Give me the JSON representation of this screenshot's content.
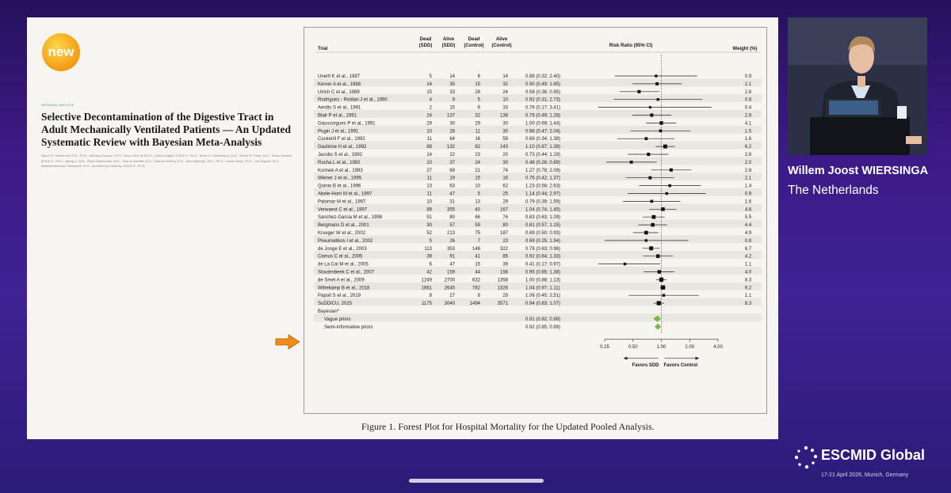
{
  "slide": {
    "badge": "new",
    "article": {
      "label": "ORIGINAL ARTICLE",
      "title": "Selective Decontamination of the Digestive Tract in Adult Mechanically Ventilated Patients — An Updated Systematic Review with Bayesian Meta-Analysis",
      "authors": "Naomi E. Hammond, R.N., Ph.D., Anthony Devaux, Ph.D., Ruun Vleit, M.B.B.S., Derick Adigbli, M.B.B.S., Ph.D., Brian H. Cuthbertson, M.D., Simon R. Finfer, M.D., Tessa Garside, M.B.B.S., Ph.D., Qiang Li, M.B., Siaen Mahendran, M.D., Sharon Micallef, B.N., Srinivas Murthy, M.D., John Myburgh, M.D., Ph.D., Louise Rose, Ph.D., Ian Seppelt, M.D., Balasubramanian Venkatesh, M.D., and Anthony Delaney, M.B.B.S., Ph.D."
    },
    "caption": "Figure 1.  Forest Plot for Hospital Mortality for the Updated Pooled Analysis.",
    "arrow_icon": "orange-arrow-right-icon"
  },
  "speaker": {
    "name": "Willem Joost WIERSINGA",
    "country": "The Netherlands"
  },
  "event": {
    "logo_name": "ESCMID Global",
    "dates": "17-21 April 2026, Munich, Germany"
  },
  "forest_plot": {
    "headers": {
      "trial": "Trial",
      "dead_sdd": [
        "Dead",
        "(SDD)"
      ],
      "alive_sdd": [
        "Alive",
        "(SDD)"
      ],
      "dead_control": [
        "Dead",
        "(Control)"
      ],
      "alive_control": [
        "Alive",
        "(Control)"
      ],
      "risk_ratio": "Risk Ratio (95% CI)",
      "weight": "Weight (%)"
    },
    "bayesian_label": "Bayesian*",
    "favors_sdd": "Favors SDD",
    "favors_control": "Favors Control",
    "colors": {
      "square": "#111111",
      "diamond": "#7ab648",
      "stripe": "#e7e6e0",
      "arrow": "#f08c1a"
    }
  },
  "chart_data": {
    "type": "forest",
    "x_scale": "log",
    "xlim": [
      0.25,
      4.0
    ],
    "x_ticks": [
      0.25,
      0.5,
      1.0,
      2.0,
      4.0
    ],
    "x_tick_labels": [
      "0.25",
      "0.50",
      "1.00",
      "2.00",
      "4.00"
    ],
    "reference_line": 1.0,
    "trials": [
      {
        "trial": "Unertl K et al., 1987",
        "dead_sdd": "5",
        "alive_sdd": "14",
        "dead_control": "6",
        "alive_control": "14",
        "rr_text": "0.88 (0.32; 2.40)",
        "rr": 0.88,
        "lo": 0.32,
        "hi": 2.4,
        "weight": "0.9"
      },
      {
        "trial": "Kerver A et al., 1988",
        "dead_sdd": "14",
        "alive_sdd": "35",
        "dead_control": "15",
        "alive_control": "32",
        "rr_text": "0.90 (0.49; 1.65)",
        "rr": 0.9,
        "lo": 0.49,
        "hi": 1.65,
        "weight": "2.1"
      },
      {
        "trial": "Ulrich C et al., 1989",
        "dead_sdd": "15",
        "alive_sdd": "33",
        "dead_control": "28",
        "alive_control": "24",
        "rr_text": "0.58 (0.36; 0.95)",
        "rr": 0.58,
        "lo": 0.36,
        "hi": 0.95,
        "weight": "2.8"
      },
      {
        "trial": "Rodriguez - Roldan J et al., 1990",
        "dead_sdd": "4",
        "alive_sdd": "9",
        "dead_control": "5",
        "alive_control": "10",
        "rr_text": "0.92 (0.31; 2.73)",
        "rr": 0.92,
        "lo": 0.31,
        "hi": 2.73,
        "weight": "0.8"
      },
      {
        "trial": "Aerdts S et al., 1991",
        "dead_sdd": "2",
        "alive_sdd": "15",
        "dead_control": "6",
        "alive_control": "33",
        "rr_text": "0.76 (0.17; 3.41)",
        "rr": 0.76,
        "lo": 0.17,
        "hi": 3.41,
        "weight": "0.4"
      },
      {
        "trial": "Blair P et al., 1991",
        "dead_sdd": "24",
        "alive_sdd": "137",
        "dead_control": "32",
        "alive_control": "138",
        "rr_text": "0.79 (0.49; 1.28)",
        "rr": 0.79,
        "lo": 0.49,
        "hi": 1.28,
        "weight": "2.9"
      },
      {
        "trial": "Gaussorgues P et al., 1991",
        "dead_sdd": "29",
        "alive_sdd": "30",
        "dead_control": "29",
        "alive_control": "30",
        "rr_text": "1.00 (0.69; 1.44)",
        "rr": 1.0,
        "lo": 0.69,
        "hi": 1.44,
        "weight": "4.1"
      },
      {
        "trial": "Pugin J et al., 1991",
        "dead_sdd": "10",
        "alive_sdd": "28",
        "dead_control": "11",
        "alive_control": "30",
        "rr_text": "0.98 (0.47; 2.04)",
        "rr": 0.98,
        "lo": 0.47,
        "hi": 2.04,
        "weight": "1.5"
      },
      {
        "trial": "Cockerill F et al., 1992",
        "dead_sdd": "11",
        "alive_sdd": "64",
        "dead_control": "16",
        "alive_control": "59",
        "rr_text": "0.69 (0.34; 1.38)",
        "rr": 0.69,
        "lo": 0.34,
        "hi": 1.38,
        "weight": "1.6"
      },
      {
        "trial": "Gastinne H et al., 1992",
        "dead_sdd": "88",
        "alive_sdd": "132",
        "dead_control": "82",
        "alive_control": "143",
        "rr_text": "1.10 (0.87; 1.39)",
        "rr": 1.1,
        "lo": 0.87,
        "hi": 1.39,
        "weight": "6.2"
      },
      {
        "trial": "Jacobs S et al., 1992",
        "dead_sdd": "14",
        "alive_sdd": "22",
        "dead_control": "23",
        "alive_control": "20",
        "rr_text": "0.73 (0.44; 1.19)",
        "rr": 0.73,
        "lo": 0.44,
        "hi": 1.19,
        "weight": "2.8"
      },
      {
        "trial": "Rocha L et al., 1992",
        "dead_sdd": "10",
        "alive_sdd": "37",
        "dead_control": "24",
        "alive_control": "30",
        "rr_text": "0.48 (0.26; 0.89)",
        "rr": 0.48,
        "lo": 0.26,
        "hi": 0.89,
        "weight": "2.0"
      },
      {
        "trial": "Korinek A et al., 1993",
        "dead_sdd": "27",
        "alive_sdd": "69",
        "dead_control": "21",
        "alive_control": "74",
        "rr_text": "1.27 (0.78; 2.09)",
        "rr": 1.27,
        "lo": 0.78,
        "hi": 2.09,
        "weight": "2.8"
      },
      {
        "trial": "Wiener J et al., 1995",
        "dead_sdd": "11",
        "alive_sdd": "19",
        "dead_control": "15",
        "alive_control": "16",
        "rr_text": "0.76 (0.42; 1.37)",
        "rr": 0.76,
        "lo": 0.42,
        "hi": 1.37,
        "weight": "2.1"
      },
      {
        "trial": "Quinio B et al., 1996",
        "dead_sdd": "13",
        "alive_sdd": "63",
        "dead_control": "10",
        "alive_control": "62",
        "rr_text": "1.23 (0.58; 2.63)",
        "rr": 1.23,
        "lo": 0.58,
        "hi": 2.63,
        "weight": "1.4"
      },
      {
        "trial": "Abele-Horn M et al., 1997",
        "dead_sdd": "11",
        "alive_sdd": "47",
        "dead_control": "5",
        "alive_control": "25",
        "rr_text": "1.14 (0.44; 2.97)",
        "rr": 1.14,
        "lo": 0.44,
        "hi": 2.97,
        "weight": "0.9"
      },
      {
        "trial": "Palomar M et al., 1997",
        "dead_sdd": "10",
        "alive_sdd": "31",
        "dead_control": "13",
        "alive_control": "29",
        "rr_text": "0.79 (0.39; 1.59)",
        "rr": 0.79,
        "lo": 0.39,
        "hi": 1.59,
        "weight": "1.6"
      },
      {
        "trial": "Verwaest C et al., 1997",
        "dead_sdd": "89",
        "alive_sdd": "355",
        "dead_control": "40",
        "alive_control": "167",
        "rr_text": "1.04 (0.74; 1.45)",
        "rr": 1.04,
        "lo": 0.74,
        "hi": 1.45,
        "weight": "4.6"
      },
      {
        "trial": "Sanchez-Garcia M et al., 1998",
        "dead_sdd": "51",
        "alive_sdd": "80",
        "dead_control": "66",
        "alive_control": "74",
        "rr_text": "0.83 (0.63; 1.09)",
        "rr": 0.83,
        "lo": 0.63,
        "hi": 1.09,
        "weight": "5.5"
      },
      {
        "trial": "Bergmans D et al., 2001",
        "dead_sdd": "30",
        "alive_sdd": "57",
        "dead_control": "59",
        "alive_control": "80",
        "rr_text": "0.81 (0.57; 1.15)",
        "rr": 0.81,
        "lo": 0.57,
        "hi": 1.15,
        "weight": "4.4"
      },
      {
        "trial": "Krueger W et al., 2002",
        "dead_sdd": "52",
        "alive_sdd": "213",
        "dead_control": "75",
        "alive_control": "187",
        "rr_text": "0.69 (0.50; 0.93)",
        "rr": 0.69,
        "lo": 0.5,
        "hi": 0.93,
        "weight": "4.9"
      },
      {
        "trial": "Pneumatikos I et al., 2002",
        "dead_sdd": "5",
        "alive_sdd": "26",
        "dead_control": "7",
        "alive_control": "23",
        "rr_text": "0.69 (0.25; 1.94)",
        "rr": 0.69,
        "lo": 0.25,
        "hi": 1.94,
        "weight": "0.8"
      },
      {
        "trial": "de Jonge E et al., 2003",
        "dead_sdd": "113",
        "alive_sdd": "353",
        "dead_control": "146",
        "alive_control": "322",
        "rr_text": "0.78 (0.63; 0.96)",
        "rr": 0.78,
        "lo": 0.63,
        "hi": 0.96,
        "weight": "6.7"
      },
      {
        "trial": "Camus C et al., 2005",
        "dead_sdd": "39",
        "alive_sdd": "91",
        "dead_control": "41",
        "alive_control": "85",
        "rr_text": "0.92 (0.64; 1.33)",
        "rr": 0.92,
        "lo": 0.64,
        "hi": 1.33,
        "weight": "4.2"
      },
      {
        "trial": "de La Cal M et al., 2005",
        "dead_sdd": "6",
        "alive_sdd": "47",
        "dead_control": "15",
        "alive_control": "39",
        "rr_text": "0.41 (0.17; 0.97)",
        "rr": 0.41,
        "lo": 0.17,
        "hi": 0.97,
        "weight": "1.1"
      },
      {
        "trial": "Stoutenbeek C et al., 2007",
        "dead_sdd": "42",
        "alive_sdd": "159",
        "dead_control": "44",
        "alive_control": "156",
        "rr_text": "0.95 (0.65; 1.38)",
        "rr": 0.95,
        "lo": 0.65,
        "hi": 1.38,
        "weight": "4.0"
      },
      {
        "trial": "de Smet A et al., 2009",
        "dead_sdd": "1249",
        "alive_sdd": "2700",
        "dead_control": "632",
        "alive_control": "1358",
        "rr_text": "1.00 (0.88; 1.13)",
        "rr": 1.0,
        "lo": 0.88,
        "hi": 1.13,
        "weight": "8.3"
      },
      {
        "trial": "Wittekamp B et al., 2018",
        "dead_sdd": "1661",
        "alive_sdd": "2645",
        "dead_control": "782",
        "alive_control": "1326",
        "rr_text": "1.04 (0.97; 1.11)",
        "rr": 1.04,
        "lo": 0.97,
        "hi": 1.11,
        "weight": "9.2"
      },
      {
        "trial": "Papoti S et al., 2019",
        "dead_sdd": "8",
        "alive_sdd": "27",
        "dead_control": "8",
        "alive_control": "29",
        "rr_text": "1.06 (0.45; 2.51)",
        "rr": 1.06,
        "lo": 0.45,
        "hi": 2.51,
        "weight": "1.1"
      },
      {
        "trial": "SuDDICU, 2025",
        "dead_sdd": "1175",
        "alive_sdd": "3040",
        "dead_control": "1494",
        "alive_control": "3571",
        "rr_text": "0.94 (0.83; 1.07)",
        "rr": 0.94,
        "lo": 0.83,
        "hi": 1.07,
        "weight": "8.3"
      }
    ],
    "pooled": [
      {
        "label": "Vague priors",
        "rr_text": "0.91 (0.82; 0.99)",
        "rr": 0.91,
        "lo": 0.82,
        "hi": 0.99
      },
      {
        "label": "Semi-informative priors",
        "rr_text": "0.92 (0.85; 0.99)",
        "rr": 0.92,
        "lo": 0.85,
        "hi": 0.99
      }
    ]
  }
}
